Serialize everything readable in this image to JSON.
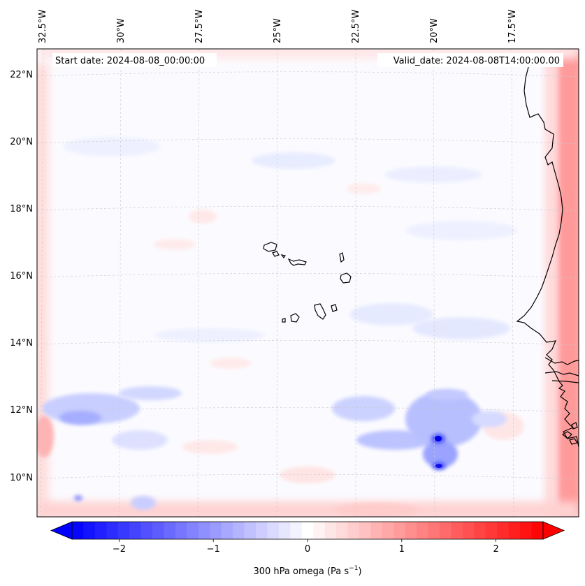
{
  "header": {
    "start_date": "Start date: 2024-08-08_00:00:00",
    "valid_date": "Valid_date: 2024-08-08T14:00:00.00"
  },
  "map": {
    "lon_labels": [
      "32.5°W",
      "30°W",
      "27.5°W",
      "25°W",
      "22.5°W",
      "20°W",
      "17.5°W"
    ],
    "lat_labels": [
      "22°N",
      "20°N",
      "18°N",
      "16°N",
      "14°N",
      "12°N",
      "10°N"
    ],
    "grid": true,
    "coastline_color": "#000000"
  },
  "colorbar": {
    "ticks": [
      {
        "value": -2,
        "label": "−2"
      },
      {
        "value": -1,
        "label": "−1"
      },
      {
        "value": 0,
        "label": "0"
      },
      {
        "value": 1,
        "label": "1"
      },
      {
        "value": 2,
        "label": "2"
      }
    ],
    "range": [
      -2.5,
      2.5
    ],
    "levels": 41,
    "cmap_low": "#0000ff",
    "cmap_mid": "#ffffff",
    "cmap_high": "#ff0000",
    "label_main": "300 hPa omega (Pa s",
    "label_sup": "−1",
    "label_end": ")"
  }
}
